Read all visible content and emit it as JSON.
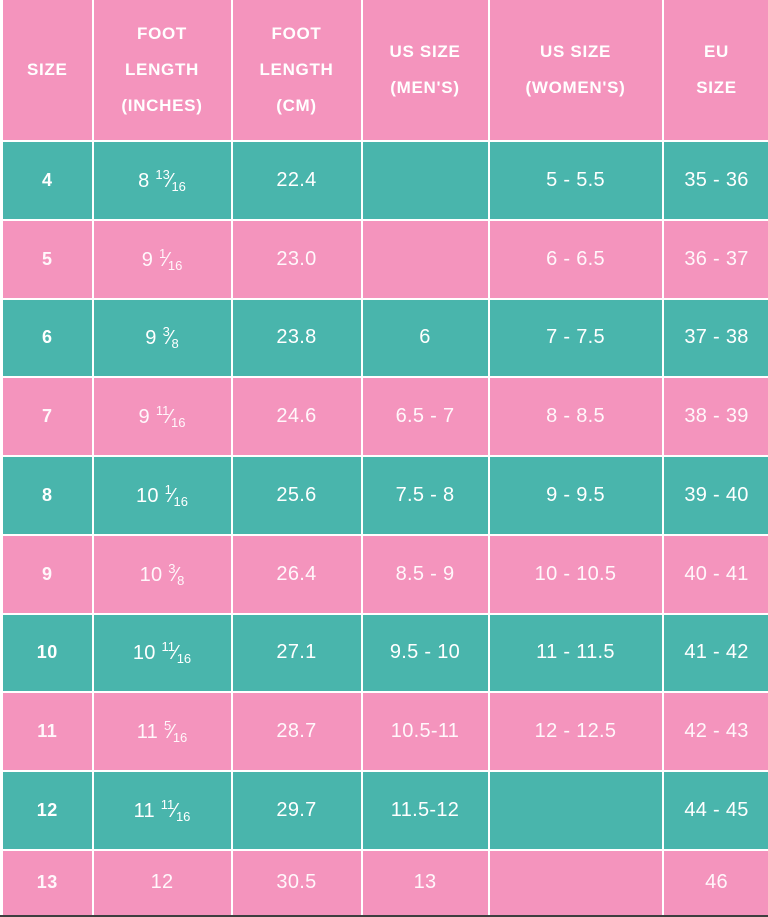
{
  "chart_data": {
    "type": "table",
    "title": "",
    "columns": [
      {
        "key": "size",
        "label": "SIZE"
      },
      {
        "key": "foot_length_inches",
        "label": "FOOT\nLENGTH\n(INCHES)"
      },
      {
        "key": "foot_length_cm",
        "label": "FOOT\nLENGTH\n(CM)"
      },
      {
        "key": "us_size_mens",
        "label": "US SIZE\n(MEN'S)"
      },
      {
        "key": "us_size_womens",
        "label": "US SIZE\n(WOMEN'S)"
      },
      {
        "key": "eu_size",
        "label": "EU\nSIZE"
      }
    ],
    "rows": [
      [
        "4",
        "8 13/16",
        "22.4",
        "",
        "5 - 5.5",
        "35 - 36"
      ],
      [
        "5",
        "9 1/16",
        "23.0",
        "",
        "6 - 6.5",
        "36 - 37"
      ],
      [
        "6",
        "9 3/8",
        "23.8",
        "6",
        "7 - 7.5",
        "37 - 38"
      ],
      [
        "7",
        "9 11/16",
        "24.6",
        "6.5 - 7",
        "8 - 8.5",
        "38 - 39"
      ],
      [
        "8",
        "10 1/16",
        "25.6",
        "7.5 - 8",
        "9 - 9.5",
        "39 - 40"
      ],
      [
        "9",
        "10 3/8",
        "26.4",
        "8.5 - 9",
        "10 - 10.5",
        "40 - 41"
      ],
      [
        "10",
        "10 11/16",
        "27.1",
        "9.5 - 10",
        "11 - 11.5",
        "41 - 42"
      ],
      [
        "11",
        "11 5/16",
        "28.7",
        "10.5-11",
        "12 - 12.5",
        "42 - 43"
      ],
      [
        "12",
        "11 11/16",
        "29.7",
        "11.5-12",
        "",
        "44 - 45"
      ],
      [
        "13",
        "12",
        "30.5",
        "13",
        "",
        "46"
      ]
    ],
    "row_stripe_order": [
      "teal",
      "pink"
    ],
    "layout": {
      "grid": "white 2px cell dividers",
      "header_position": "top"
    }
  },
  "colors": {
    "pink": "#f494bd",
    "teal": "#49b5ac",
    "header_bg": "#f494bd",
    "text": "#ffffff",
    "divider": "#ffffff",
    "bottom_edge": "#3f3f3f"
  }
}
